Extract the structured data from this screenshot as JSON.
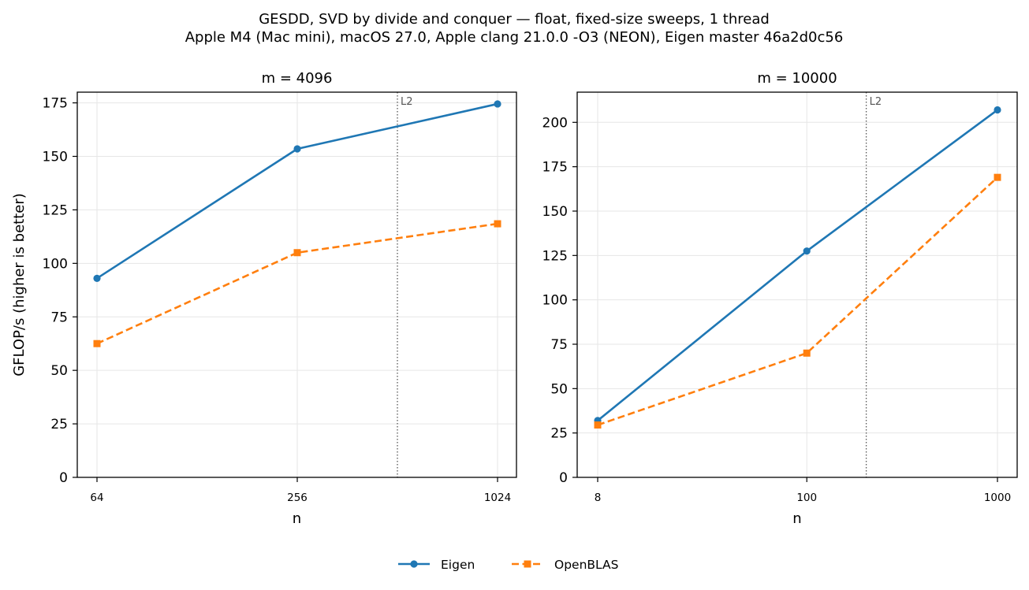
{
  "figure": {
    "title_line1": "GESDD, SVD by divide and conquer — float, fixed-size sweeps, 1 thread",
    "title_line2": "Apple M4 (Mac mini), macOS 27.0, Apple clang 21.0.0 -O3 (NEON), Eigen master 46a2d0c56",
    "legend": [
      {
        "name": "Eigen",
        "color": "#1f77b4",
        "marker": "circle",
        "linestyle": "solid"
      },
      {
        "name": "OpenBLAS",
        "color": "#ff7f0e",
        "marker": "square",
        "linestyle": "dashed"
      }
    ],
    "legend_placement": "bottom-center"
  },
  "chart_data": [
    {
      "type": "line",
      "title": "m = 4096",
      "xlabel": "n",
      "ylabel": "GFLOP/s (higher is better)",
      "xscale": "log2",
      "x": [
        64,
        256,
        1024
      ],
      "x_tick_labels": [
        "64",
        "256",
        "1024"
      ],
      "ylim": [
        0,
        180
      ],
      "y_ticks": [
        0,
        25,
        50,
        75,
        100,
        125,
        150,
        175
      ],
      "grid": true,
      "series": [
        {
          "name": "Eigen",
          "values": [
            93,
            153.5,
            174.5
          ]
        },
        {
          "name": "OpenBLAS",
          "values": [
            62.5,
            105,
            118.5
          ]
        }
      ],
      "vline": {
        "label": "L2",
        "x": 512
      }
    },
    {
      "type": "line",
      "title": "m = 10000",
      "xlabel": "n",
      "ylabel": "",
      "xscale": "log10",
      "x": [
        8,
        100,
        1000
      ],
      "x_tick_labels": [
        "8",
        "100",
        "1000"
      ],
      "ylim": [
        0,
        217
      ],
      "y_ticks": [
        0,
        25,
        50,
        75,
        100,
        125,
        150,
        175,
        200
      ],
      "grid": true,
      "series": [
        {
          "name": "Eigen",
          "values": [
            32,
            127.5,
            207
          ]
        },
        {
          "name": "OpenBLAS",
          "values": [
            29.5,
            70,
            169
          ]
        }
      ],
      "vline": {
        "label": "L2",
        "x": 205
      }
    }
  ]
}
